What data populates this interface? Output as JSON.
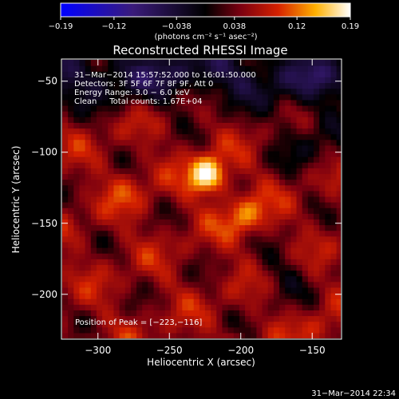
{
  "chart_data": {
    "type": "heatmap",
    "title": "Reconstructed RHESSI Image",
    "xlabel": "Heliocentric X (arcsec)",
    "ylabel": "Heliocentric Y (arcsec)",
    "xlim": [
      -325,
      -130
    ],
    "ylim": [
      -231,
      -35
    ],
    "x_ticks": [
      -300,
      -250,
      -200,
      -150
    ],
    "y_ticks": [
      -50,
      -100,
      -150,
      -200
    ],
    "x_tick_labels": [
      "−300",
      "−250",
      "−200",
      "−150"
    ],
    "y_tick_labels": [
      "−50",
      "−100",
      "−150",
      "−200"
    ],
    "colorbar": {
      "range": [
        -0.19,
        0.19
      ],
      "ticks": [
        -0.19,
        -0.12,
        -0.038,
        0.038,
        0.12,
        0.19
      ],
      "tick_labels": [
        "−0.19",
        "−0.12",
        "−0.038",
        "0.038",
        "0.12",
        "0.19"
      ],
      "unit_label": "(photons cm⁻² s⁻¹ asec⁻²)"
    },
    "annotations": [
      "31−Mar−2014 15:57:52.000 to 16:01:50.000",
      "Detectors: 3F 5F 6F 7F 8F 9F, Att 0",
      "Energy Range: 3.0 − 6.0 keV",
      "Clean     Total counts: 1.67E+04"
    ],
    "peak_label": "Position of Peak = [−223,−116]",
    "peak": {
      "x": -223,
      "y": -116,
      "value": 0.19
    },
    "sources": [
      {
        "x": -223,
        "y": -116,
        "value": 0.19
      },
      {
        "x": -197,
        "y": -145,
        "value": 0.11
      },
      {
        "x": -278,
        "y": -127,
        "value": 0.07
      },
      {
        "x": -145,
        "y": -225,
        "value": 0.06
      }
    ],
    "colors": {
      "low": "#0000ff",
      "zero": "#000000",
      "mid": "#d42000",
      "high": "#ffffff"
    }
  },
  "footer": {
    "timestamp": "31−Mar−2014 22:34"
  }
}
